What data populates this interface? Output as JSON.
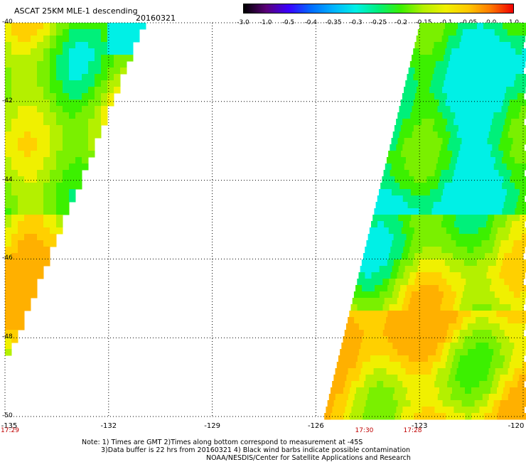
{
  "header": {
    "title": "ASCAT 25KM MLE-1 descending",
    "date": "20160321"
  },
  "colorbar": {
    "ticks": [
      "-3.0",
      "-1.0",
      "-0.5",
      "-0.4",
      "-0.35",
      "-0.3",
      "-0.25",
      "-0.2",
      "-0.15",
      "-0.1",
      "-0.05",
      "0.0",
      "1.0"
    ],
    "colors": [
      "#000000",
      "#5a0078",
      "#3a00ff",
      "#006cff",
      "#00b4ff",
      "#00f0e6",
      "#00f07a",
      "#3cf000",
      "#b4f000",
      "#f0f000",
      "#ffc800",
      "#ff7800",
      "#f00000"
    ]
  },
  "map": {
    "lon_ticks": [
      "-135",
      "-132",
      "-129",
      "-126",
      "-123",
      "-120"
    ],
    "lat_ticks": [
      "-40",
      "-42",
      "-44",
      "-46",
      "-48",
      "-50"
    ],
    "lon_range": [
      -135,
      -120
    ],
    "lat_range": [
      -40,
      -50
    ],
    "grid": "dotted",
    "swath_times": [
      {
        "label": "17:29",
        "lon": -135.0
      },
      {
        "label": "17:30",
        "lon": -124.6
      },
      {
        "label": "17:28",
        "lon": -123.2
      }
    ]
  },
  "notes": {
    "line1": "Note: 1) Times are GMT 2)Times along bottom correspond to measurement at -45S",
    "line2": "3)Data buffer is 22 hrs from 20160321 4) Black wind barbs indicate possible contamination",
    "line3": "NOAA/NESDIS/Center for Satellite Applications and Research"
  }
}
